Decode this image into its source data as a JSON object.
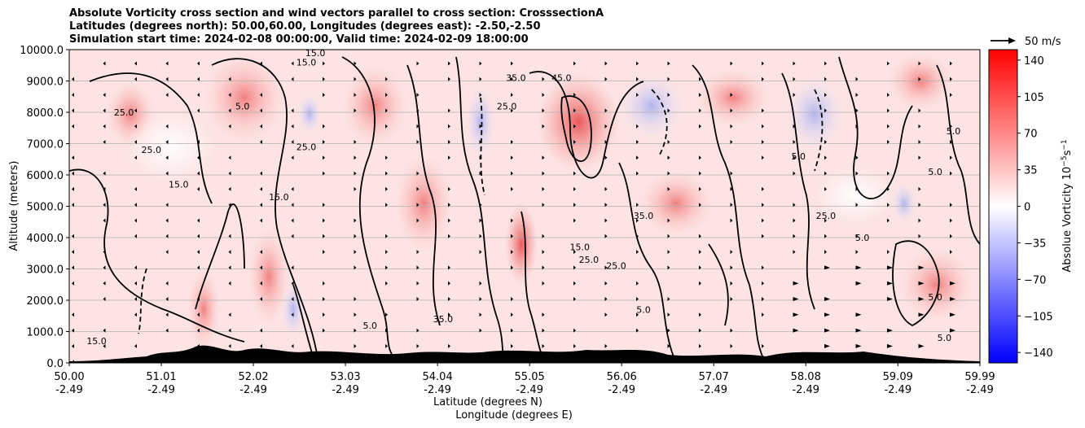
{
  "title_lines": [
    "Absolute Vorticity cross section and wind vectors parallel to cross section: CrosssectionA",
    "Latitudes (degrees north): 50.00,60.00, Longitudes (degrees east): -2.50,-2.50",
    "Simulation start time: 2024-02-08 00:00:00, Valid time: 2024-02-09 18:00:00"
  ],
  "quiver_key": "50 m/s",
  "colors": {
    "colormap": [
      "#0000ff",
      "#ffffff",
      "#ff0000"
    ],
    "grid": "#b0b0b0",
    "contour": "#000000",
    "terrain": "#000000"
  },
  "chart_data": {
    "type": "cross-section",
    "ylabel": "Altitude (meters)",
    "xlabel_line1": "Latitude (degrees N)",
    "xlabel_line2": "Longitude (degrees E)",
    "ylim": [
      0,
      10000
    ],
    "xlim": [
      50.0,
      59.99
    ],
    "y_ticks": [
      "0.0",
      "1000.0",
      "2000.0",
      "3000.0",
      "4000.0",
      "5000.0",
      "6000.0",
      "7000.0",
      "8000.0",
      "9000.0",
      "10000.0"
    ],
    "x_ticks": [
      {
        "lat": "50.00",
        "lon": "-2.49"
      },
      {
        "lat": "51.01",
        "lon": "-2.49"
      },
      {
        "lat": "52.02",
        "lon": "-2.49"
      },
      {
        "lat": "53.03",
        "lon": "-2.49"
      },
      {
        "lat": "54.04",
        "lon": "-2.49"
      },
      {
        "lat": "55.05",
        "lon": "-2.49"
      },
      {
        "lat": "56.06",
        "lon": "-2.49"
      },
      {
        "lat": "57.07",
        "lon": "-2.49"
      },
      {
        "lat": "58.08",
        "lon": "-2.49"
      },
      {
        "lat": "59.09",
        "lon": "-2.49"
      },
      {
        "lat": "59.99",
        "lon": "-2.49"
      }
    ],
    "colorbar": {
      "label": "Absolue Vorticity 10",
      "label_exp": "−5",
      "label_unit": "s",
      "label_unit_exp": "−1",
      "range": [
        -150,
        150
      ],
      "ticks": [
        "140",
        "105",
        "70",
        "35",
        "0",
        "−35",
        "−70",
        "−105",
        "−140"
      ]
    },
    "contour_labels": [
      {
        "text": "15.0",
        "lat": 50.3,
        "alt": 700
      },
      {
        "text": "25.0",
        "lat": 50.9,
        "alt": 6800
      },
      {
        "text": "15.0",
        "lat": 51.2,
        "alt": 5700
      },
      {
        "text": "5.0",
        "lat": 51.9,
        "alt": 8200
      },
      {
        "text": "15.0",
        "lat": 52.6,
        "alt": 9600
      },
      {
        "text": "25.0",
        "lat": 52.6,
        "alt": 6900
      },
      {
        "text": "15.0",
        "lat": 52.3,
        "alt": 5300
      },
      {
        "text": "15.0",
        "lat": 52.7,
        "alt": 9900
      },
      {
        "text": "35.0",
        "lat": 54.9,
        "alt": 9100
      },
      {
        "text": "45.0",
        "lat": 55.4,
        "alt": 9100
      },
      {
        "text": "25.0",
        "lat": 54.8,
        "alt": 8200
      },
      {
        "text": "35.0",
        "lat": 56.3,
        "alt": 4700
      },
      {
        "text": "15.0",
        "lat": 55.6,
        "alt": 3700
      },
      {
        "text": "25.0",
        "lat": 55.7,
        "alt": 3300
      },
      {
        "text": "25.0",
        "lat": 56.0,
        "alt": 3100
      },
      {
        "text": "5.0",
        "lat": 56.3,
        "alt": 1700
      },
      {
        "text": "5.0",
        "lat": 58.0,
        "alt": 6600
      },
      {
        "text": "25.0",
        "lat": 58.3,
        "alt": 4700
      },
      {
        "text": "5.0",
        "lat": 58.7,
        "alt": 4000
      },
      {
        "text": "5.0",
        "lat": 59.5,
        "alt": 2100
      },
      {
        "text": "5.0",
        "lat": 59.7,
        "alt": 7400
      },
      {
        "text": "5.0",
        "lat": 59.5,
        "alt": 6100
      },
      {
        "text": "5.0",
        "lat": 59.6,
        "alt": 800
      },
      {
        "text": "35.0",
        "lat": 54.1,
        "alt": 1400
      },
      {
        "text": "5.0",
        "lat": 53.3,
        "alt": 1200
      },
      {
        "text": "25.0",
        "lat": 50.6,
        "alt": 8000
      }
    ]
  }
}
